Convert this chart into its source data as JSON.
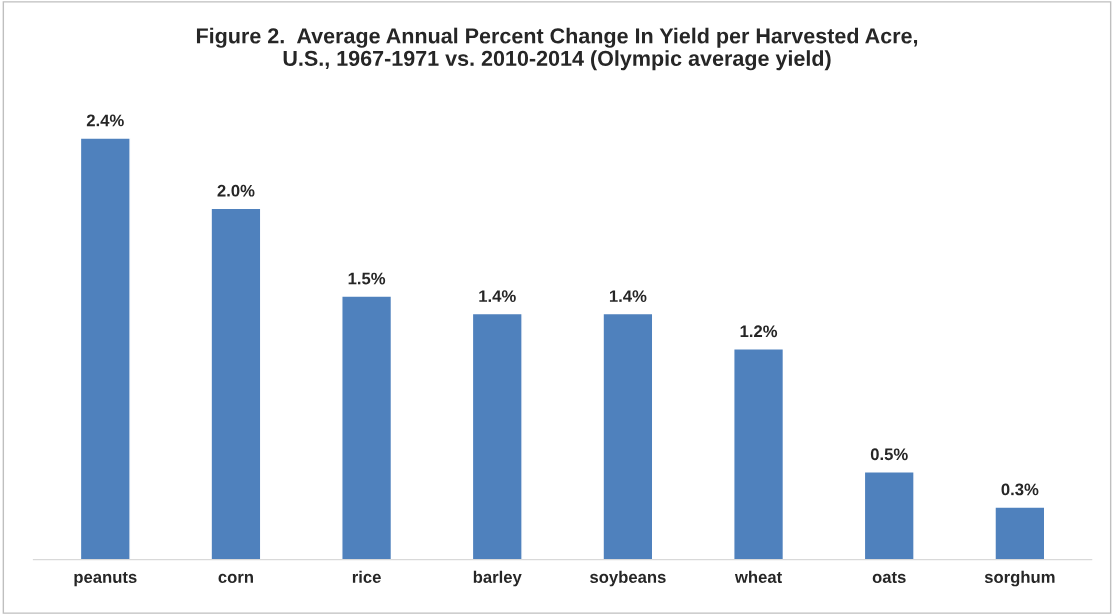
{
  "chart_data": {
    "type": "bar",
    "title": "Figure 2.  Average Annual Percent Change In Yield per Harvested Acre,\nU.S., 1967-1971 vs. 2010-2014 (Olympic average yield)",
    "categories": [
      "peanuts",
      "corn",
      "rice",
      "barley",
      "soybeans",
      "wheat",
      "oats",
      "sorghum"
    ],
    "values": [
      2.4,
      2.0,
      1.5,
      1.4,
      1.4,
      1.2,
      0.5,
      0.3
    ],
    "value_labels": [
      "2.4%",
      "2.0%",
      "1.5%",
      "1.4%",
      "1.4%",
      "1.2%",
      "0.5%",
      "0.3%"
    ],
    "color": "#4f81bd",
    "grid": false,
    "legend": false
  }
}
